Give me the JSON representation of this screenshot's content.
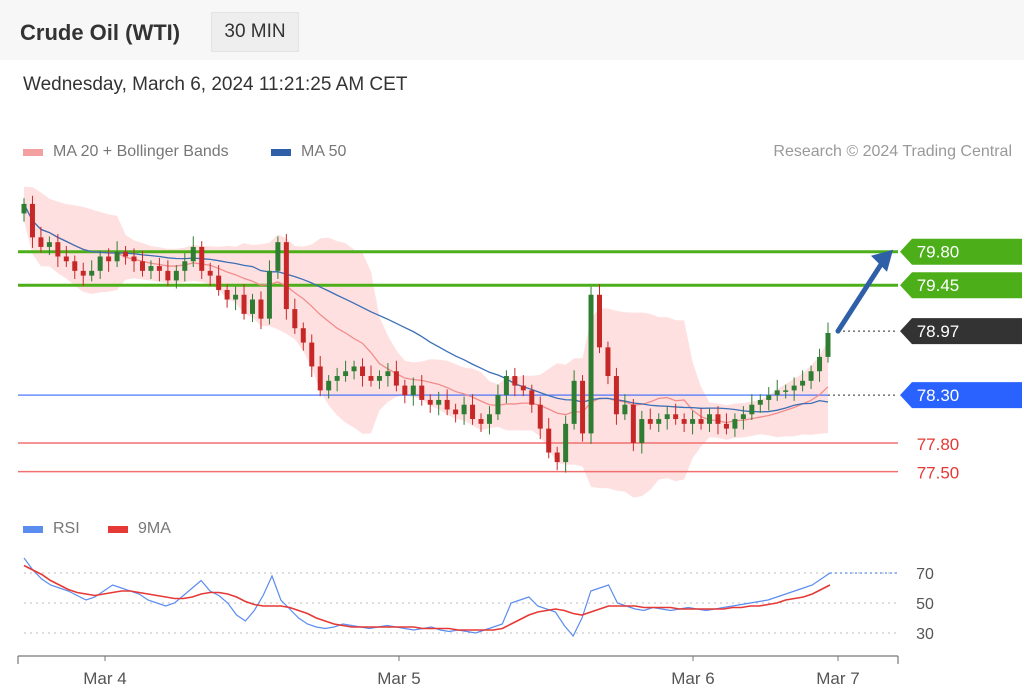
{
  "header": {
    "title": "Crude Oil (WTI)",
    "timeframe": "30 MIN",
    "datetime": "Wednesday, March 6, 2024 11:21:25 AM CET"
  },
  "legend": {
    "ma20_label": "MA 20 + Bollinger Bands",
    "ma50_label": "MA 50",
    "credit": "Research © 2024 Trading Central"
  },
  "colors": {
    "up": "#2e7d32",
    "down": "#c62828",
    "ma20": "#f28c8c",
    "ma50": "#3b6fb6",
    "bollinger_fill": "#ffd6d6",
    "resistance": "#4caf1a",
    "pivot": "#2962ff",
    "support": "#f07070",
    "current": "#333333",
    "rsi": "#5b8def",
    "rsi_ma": "#e53935",
    "arrow": "#2f5fa7"
  },
  "chart_data": [
    {
      "type": "candlestick",
      "x_ticks": [
        "Mar 4",
        "Mar 5",
        "Mar 6",
        "Mar 7"
      ],
      "ylim": [
        77.35,
        80.55
      ],
      "series_close": [
        80.3,
        79.95,
        79.85,
        79.9,
        79.75,
        79.7,
        79.6,
        79.55,
        79.6,
        79.75,
        79.7,
        79.8,
        79.75,
        79.7,
        79.6,
        79.65,
        79.6,
        79.5,
        79.6,
        79.7,
        79.85,
        79.6,
        79.55,
        79.4,
        79.3,
        79.35,
        79.15,
        79.3,
        79.1,
        79.6,
        79.9,
        79.2,
        79.0,
        78.85,
        78.6,
        78.35,
        78.45,
        78.5,
        78.55,
        78.6,
        78.5,
        78.45,
        78.5,
        78.55,
        78.4,
        78.3,
        78.4,
        78.25,
        78.2,
        78.25,
        78.15,
        78.1,
        78.2,
        78.05,
        78.0,
        78.1,
        78.3,
        78.5,
        78.4,
        78.35,
        78.2,
        77.95,
        77.7,
        77.6,
        78.0,
        78.45,
        77.9,
        79.35,
        78.8,
        78.5,
        78.1,
        78.2,
        77.8,
        78.05,
        78.0,
        78.05,
        78.1,
        78.05,
        78.0,
        78.05,
        78.0,
        78.1,
        78.0,
        77.95,
        78.05,
        78.1,
        78.2,
        78.25,
        78.3,
        78.35,
        78.35,
        78.4,
        78.45,
        78.55,
        78.7,
        78.95
      ],
      "levels": [
        {
          "label": "79.80",
          "value": 79.8,
          "role": "resistance"
        },
        {
          "label": "79.45",
          "value": 79.45,
          "role": "resistance"
        },
        {
          "label": "78.97",
          "value": 78.97,
          "role": "current"
        },
        {
          "label": "78.30",
          "value": 78.3,
          "role": "pivot"
        },
        {
          "label": "77.80",
          "value": 77.8,
          "role": "support"
        },
        {
          "label": "77.50",
          "value": 77.5,
          "role": "support"
        }
      ],
      "series": [
        {
          "name": "MA 20 + Bollinger Bands"
        },
        {
          "name": "MA 50"
        }
      ],
      "grid": false
    },
    {
      "type": "line",
      "ylim": [
        22,
        82
      ],
      "y_ticks": [
        "70",
        "50",
        "30"
      ],
      "series": [
        {
          "name": "RSI",
          "values": [
            80,
            72,
            66,
            62,
            60,
            58,
            55,
            52,
            54,
            58,
            62,
            60,
            58,
            56,
            52,
            50,
            48,
            50,
            55,
            60,
            65,
            58,
            55,
            50,
            42,
            38,
            45,
            55,
            68,
            52,
            46,
            40,
            36,
            34,
            33,
            34,
            36,
            35,
            34,
            33,
            34,
            35,
            34,
            33,
            32,
            33,
            34,
            32,
            31,
            32,
            31,
            30,
            32,
            34,
            36,
            50,
            52,
            54,
            48,
            46,
            44,
            35,
            28,
            40,
            58,
            60,
            62,
            50,
            48,
            46,
            45,
            47,
            46,
            45,
            46,
            47,
            46,
            45,
            46,
            47,
            48,
            49,
            50,
            51,
            52,
            54,
            56,
            58,
            60,
            62,
            66,
            70
          ]
        },
        {
          "name": "9MA",
          "values": [
            75,
            72,
            69,
            65,
            62,
            59,
            57,
            56,
            55,
            56,
            57,
            58,
            58,
            57,
            56,
            55,
            54,
            53,
            53,
            54,
            56,
            57,
            57,
            56,
            54,
            51,
            49,
            48,
            48,
            48,
            47,
            45,
            43,
            40,
            38,
            36,
            35,
            34,
            34,
            34,
            34,
            34,
            34,
            34,
            34,
            33,
            33,
            33,
            33,
            32,
            32,
            32,
            32,
            32,
            33,
            36,
            39,
            42,
            44,
            45,
            46,
            45,
            43,
            42,
            44,
            46,
            48,
            48,
            48,
            48,
            47,
            47,
            47,
            47,
            46,
            46,
            46,
            46,
            46,
            46,
            47,
            47,
            48,
            48,
            49,
            50,
            52,
            53,
            54,
            56,
            59,
            62
          ]
        }
      ]
    }
  ],
  "rsi_legend": {
    "rsi_label": "RSI",
    "ma_label": "9MA"
  }
}
